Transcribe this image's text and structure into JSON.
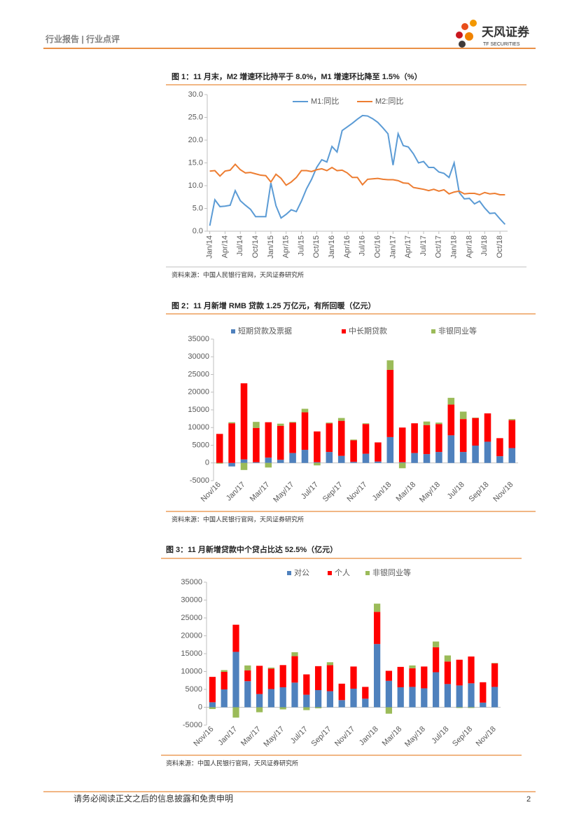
{
  "header": {
    "section": "行业报告 | 行业点评",
    "logo_name": "天风证券",
    "logo_en": "TF SECURITIES"
  },
  "footer": {
    "disclaimer": "请务必阅读正文之后的信息披露和免责申明",
    "page": "2"
  },
  "chart_data": [
    {
      "type": "line",
      "title": "图 1：11 月末，M2 增速环比持平于 8.0%，M1 增速环比降至 1.5%（%）",
      "source": "资料来源：中国人民银行官网，天风证券研究所",
      "categories": [
        "Jan/14",
        null,
        null,
        "Apr/14",
        null,
        null,
        "Jul/14",
        null,
        null,
        "Oct/14",
        null,
        null,
        "Jan/15",
        null,
        null,
        "Apr/15",
        null,
        null,
        "Jul/15",
        null,
        null,
        "Oct/15",
        null,
        null,
        "Jan/16",
        null,
        null,
        "Apr/16",
        null,
        null,
        "Jul/16",
        null,
        null,
        "Oct/16",
        null,
        null,
        "Jan/17",
        null,
        null,
        "Apr/17",
        null,
        null,
        "Jul/17",
        null,
        null,
        "Oct/17",
        null,
        null,
        "Jan/18",
        null,
        null,
        "Apr/18",
        null,
        null,
        "Jul/18",
        null,
        null,
        "Oct/18",
        null
      ],
      "series": [
        {
          "name": "M1:同比",
          "color": "#5b9bd5",
          "values": [
            1.2,
            6.9,
            5.4,
            5.5,
            5.7,
            8.9,
            6.7,
            5.7,
            4.8,
            3.2,
            3.2,
            3.2,
            10.6,
            5.6,
            2.9,
            3.7,
            4.7,
            4.3,
            6.6,
            9.3,
            11.4,
            14.0,
            15.7,
            15.2,
            18.6,
            17.4,
            22.1,
            22.9,
            23.7,
            24.6,
            25.4,
            25.3,
            24.7,
            23.9,
            22.7,
            21.4,
            14.5,
            21.4,
            18.8,
            18.5,
            17.0,
            15.0,
            15.3,
            14.0,
            14.0,
            13.0,
            12.7,
            11.8,
            15.0,
            8.5,
            7.1,
            7.2,
            6.0,
            6.6,
            5.1,
            3.9,
            4.0,
            2.7,
            1.5
          ]
        },
        {
          "name": "M2:同比",
          "color": "#ed7d31",
          "values": [
            13.2,
            13.3,
            12.1,
            13.2,
            13.4,
            14.7,
            13.5,
            12.8,
            12.9,
            12.6,
            12.3,
            12.2,
            10.8,
            12.5,
            11.6,
            10.1,
            10.8,
            11.8,
            13.3,
            13.3,
            13.1,
            13.5,
            13.7,
            13.3,
            14.0,
            13.3,
            13.4,
            12.8,
            11.8,
            11.8,
            10.2,
            11.4,
            11.5,
            11.6,
            11.4,
            11.3,
            11.3,
            11.1,
            10.6,
            10.5,
            9.6,
            9.4,
            9.2,
            8.9,
            9.2,
            8.8,
            9.1,
            8.2,
            8.6,
            8.8,
            8.2,
            8.3,
            8.3,
            8.0,
            8.5,
            8.2,
            8.3,
            8.0,
            8.0
          ]
        }
      ],
      "ylim": [
        0,
        30
      ],
      "yticks": [
        {
          "value": 0,
          "label": "0.0"
        },
        {
          "value": 5,
          "label": "5.0"
        },
        {
          "value": 10,
          "label": "10.0"
        },
        {
          "value": 15,
          "label": "15.0"
        },
        {
          "value": 20,
          "label": "20.0"
        },
        {
          "value": 25,
          "label": "25.0"
        },
        {
          "value": 30,
          "label": "30.0"
        }
      ],
      "legend": "top",
      "grid": false
    },
    {
      "type": "stacked_bar",
      "title": "图 2：11 月新增 RMB 贷款 1.25 万亿元，有所回暖（亿元）",
      "source": "资料来源：中国人民银行官网，天风证券研究所",
      "categories": [
        "Nov/16",
        null,
        "Jan/17",
        null,
        "Mar/17",
        null,
        "May/17",
        null,
        "Jul/17",
        null,
        "Sep/17",
        null,
        "Nov/17",
        null,
        "Jan/18",
        null,
        "Mar/18",
        null,
        "May/18",
        null,
        "Jul/18",
        null,
        "Sep/18",
        null,
        "Nov/18"
      ],
      "series": [
        {
          "name": "短期贷款及票据",
          "color": "#4f81bd",
          "values": [
            0,
            -1000,
            1000,
            200,
            1500,
            900,
            2800,
            3700,
            200,
            3100,
            2000,
            300,
            2600,
            400,
            7300,
            200,
            2800,
            2500,
            3100,
            7800,
            3100,
            4900,
            6000,
            1900,
            4200
          ]
        },
        {
          "name": "中长期贷款",
          "color": "#ff0000",
          "values": [
            8200,
            11200,
            21500,
            9700,
            10000,
            9600,
            8600,
            10600,
            8700,
            8100,
            9900,
            6100,
            8400,
            5400,
            19000,
            9800,
            8400,
            8200,
            7900,
            8700,
            9300,
            7800,
            8000,
            5100,
            7900
          ]
        },
        {
          "name": "非银同业等",
          "color": "#9bbb59",
          "values": [
            -200,
            300,
            -2000,
            1700,
            -1300,
            600,
            200,
            1000,
            -700,
            200,
            800,
            200,
            200,
            0,
            2700,
            -1500,
            0,
            1000,
            400,
            1900,
            2100,
            100,
            0,
            0,
            300
          ]
        }
      ],
      "ylim": [
        -5000,
        35000
      ],
      "yticks": [
        -5000,
        0,
        5000,
        10000,
        15000,
        20000,
        25000,
        30000,
        35000
      ],
      "legend": "top",
      "grid": false
    },
    {
      "type": "stacked_bar",
      "title": "图 3：11 月新增贷款中个贷占比达 52.5%（亿元）",
      "source": "资料来源：中国人民银行官网，天风证券研究所",
      "categories": [
        "Nov/16",
        null,
        "Jan/17",
        null,
        "Mar/17",
        null,
        "May/17",
        null,
        "Jul/17",
        null,
        "Sep/17",
        null,
        "Nov/17",
        null,
        "Jan/18",
        null,
        "Mar/18",
        null,
        "May/18",
        null,
        "Jul/18",
        null,
        "Sep/18",
        null,
        "Nov/18"
      ],
      "series": [
        {
          "name": "对公",
          "color": "#4f81bd",
          "values": [
            1400,
            5000,
            15500,
            7300,
            3700,
            5100,
            5600,
            6900,
            3500,
            4800,
            4500,
            2000,
            5200,
            2400,
            17700,
            7400,
            5600,
            5700,
            5300,
            9800,
            6500,
            6100,
            6700,
            1300,
            5700
          ]
        },
        {
          "name": "个人",
          "color": "#ff0000",
          "values": [
            7100,
            4900,
            7600,
            3000,
            7900,
            5700,
            6200,
            7400,
            5700,
            6700,
            7300,
            4600,
            6200,
            3300,
            9000,
            2800,
            5700,
            5200,
            6100,
            7000,
            6300,
            7200,
            7500,
            5700,
            6600
          ]
        },
        {
          "name": "非银同业等",
          "color": "#9bbb59",
          "values": [
            -500,
            500,
            -2900,
            1400,
            -1400,
            300,
            -600,
            1100,
            -800,
            -300,
            800,
            0,
            0,
            0,
            2300,
            -1800,
            0,
            800,
            0,
            1600,
            1700,
            -200,
            -200,
            0,
            100
          ]
        }
      ],
      "ylim": [
        -5000,
        35000
      ],
      "yticks": [
        -5000,
        0,
        5000,
        10000,
        15000,
        20000,
        25000,
        30000,
        35000
      ],
      "legend": "top",
      "grid": false
    }
  ]
}
